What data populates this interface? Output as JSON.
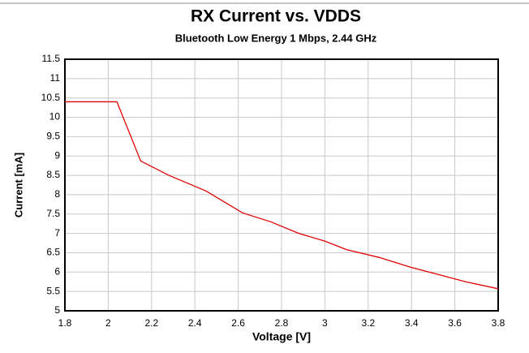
{
  "chart_data": {
    "type": "line",
    "title": "RX Current vs. VDDS",
    "subtitle": "Bluetooth Low Energy 1 Mbps, 2.44 GHz",
    "x_label": "Voltage [V]",
    "y_label": "Current [mA]",
    "x": [
      1.8,
      2.04,
      2.15,
      2.28,
      2.45,
      2.62,
      2.75,
      2.88,
      3.0,
      3.1,
      3.25,
      3.4,
      3.55,
      3.65,
      3.8
    ],
    "series": [
      {
        "name": "RX Current",
        "color": "#e00000",
        "values": [
          10.4,
          10.4,
          8.87,
          8.5,
          8.1,
          7.53,
          7.3,
          7.0,
          6.8,
          6.58,
          6.38,
          6.12,
          5.9,
          5.75,
          5.57
        ]
      }
    ],
    "xlim": [
      1.8,
      3.8
    ],
    "xticks": [
      {
        "value": 1.8,
        "label": "1.8"
      },
      {
        "value": 2,
        "label": "2"
      },
      {
        "value": 2.2,
        "label": "2.2"
      },
      {
        "value": 2.4,
        "label": "2.4"
      },
      {
        "value": 2.6,
        "label": "2.6"
      },
      {
        "value": 2.8,
        "label": "2.8"
      },
      {
        "value": 3,
        "label": "3"
      },
      {
        "value": 3.2,
        "label": "3.2"
      },
      {
        "value": 3.4,
        "label": "3.4"
      },
      {
        "value": 3.6,
        "label": "3.6"
      },
      {
        "value": 3.8,
        "label": "3.8"
      }
    ],
    "ylim": [
      5,
      11.5
    ],
    "yticks": [
      5,
      5.5,
      6,
      6.5,
      7,
      7.5,
      8,
      8.5,
      9,
      9.5,
      10,
      10.5,
      11,
      11.5
    ],
    "grid": true
  }
}
